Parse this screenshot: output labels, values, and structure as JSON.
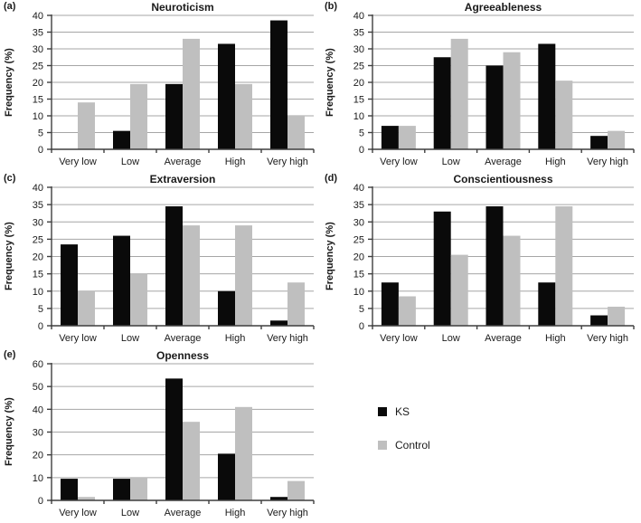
{
  "figure": {
    "background": "#ffffff",
    "description": "Five grouped bar charts of Big Five personality trait frequency distributions, KS group vs Control group"
  },
  "panels": [
    {
      "letter": "(a)"
    },
    {
      "letter": "(b)"
    },
    {
      "letter": "(c)"
    },
    {
      "letter": "(d)"
    },
    {
      "letter": "(e)"
    }
  ],
  "legend": {
    "position": "bottom-right",
    "items": [
      {
        "label": "KS",
        "color": "#0a0a0a"
      },
      {
        "label": "Control",
        "color": "#bfbfbf"
      }
    ]
  },
  "colors": {
    "grid": "#a6a6a6",
    "axis": "#3f3f3f",
    "text": "#1a1a1a"
  },
  "chart_data": [
    {
      "type": "bar",
      "title": "Neuroticism",
      "xlabel": "",
      "ylabel": "Frequency (%)",
      "categories": [
        "Very low",
        "Low",
        "Average",
        "High",
        "Very high"
      ],
      "ylim": [
        0,
        40
      ],
      "ytick_step": 5,
      "grid": true,
      "series": [
        {
          "name": "KS",
          "values": [
            0,
            5.5,
            19.5,
            31.5,
            38.5
          ]
        },
        {
          "name": "Control",
          "values": [
            14,
            19.5,
            33,
            19.5,
            10
          ]
        }
      ]
    },
    {
      "type": "bar",
      "title": "Agreeableness",
      "xlabel": "",
      "ylabel": "Frequency (%)",
      "categories": [
        "Very low",
        "Low",
        "Average",
        "High",
        "Very high"
      ],
      "ylim": [
        0,
        40
      ],
      "ytick_step": 5,
      "grid": true,
      "series": [
        {
          "name": "KS",
          "values": [
            7,
            27.5,
            25,
            31.5,
            4
          ]
        },
        {
          "name": "Control",
          "values": [
            7,
            33,
            29,
            20.5,
            5.5
          ]
        }
      ]
    },
    {
      "type": "bar",
      "title": "Extraversion",
      "xlabel": "",
      "ylabel": "Frequency (%)",
      "categories": [
        "Very low",
        "Low",
        "Average",
        "High",
        "Very high"
      ],
      "ylim": [
        0,
        40
      ],
      "ytick_step": 5,
      "grid": true,
      "series": [
        {
          "name": "KS",
          "values": [
            23.5,
            26,
            34.5,
            10,
            1.5
          ]
        },
        {
          "name": "Control",
          "values": [
            10,
            15,
            29,
            29,
            12.5
          ]
        }
      ]
    },
    {
      "type": "bar",
      "title": "Conscientiousness",
      "xlabel": "",
      "ylabel": "Frequency (%)",
      "categories": [
        "Very low",
        "Low",
        "Average",
        "High",
        "Very high"
      ],
      "ylim": [
        0,
        40
      ],
      "ytick_step": 5,
      "grid": true,
      "series": [
        {
          "name": "KS",
          "values": [
            12.5,
            33,
            34.5,
            12.5,
            3
          ]
        },
        {
          "name": "Control",
          "values": [
            8.5,
            20.5,
            26,
            34.5,
            5.5
          ]
        }
      ]
    },
    {
      "type": "bar",
      "title": "Openness",
      "xlabel": "",
      "ylabel": "Frequency (%)",
      "categories": [
        "Very low",
        "Low",
        "Average",
        "High",
        "Very high"
      ],
      "ylim": [
        0,
        60
      ],
      "ytick_step": 10,
      "grid": true,
      "series": [
        {
          "name": "KS",
          "values": [
            9.5,
            9.5,
            53.5,
            20.5,
            1.5
          ]
        },
        {
          "name": "Control",
          "values": [
            1.5,
            10,
            34.5,
            41,
            8.5
          ]
        }
      ]
    }
  ]
}
